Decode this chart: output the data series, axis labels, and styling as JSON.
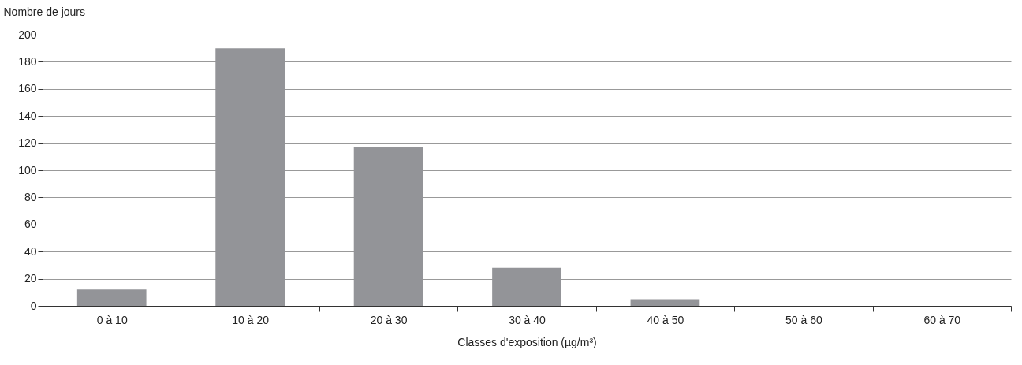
{
  "chart_data": {
    "type": "bar",
    "ylabel": "Nombre de jours",
    "xlabel": "Classes d'exposition (µg/m³)",
    "categories": [
      "0 à 10",
      "10 à 20",
      "20 à 30",
      "30 à 40",
      "40 à 50",
      "50 à 60",
      "60 à 70"
    ],
    "values": [
      12,
      190,
      117,
      28,
      5,
      0,
      0
    ],
    "color": "#939498",
    "ylim": [
      0,
      200
    ],
    "yticks": [
      0,
      20,
      40,
      60,
      80,
      100,
      120,
      140,
      160,
      180,
      200
    ],
    "grid": "y"
  }
}
